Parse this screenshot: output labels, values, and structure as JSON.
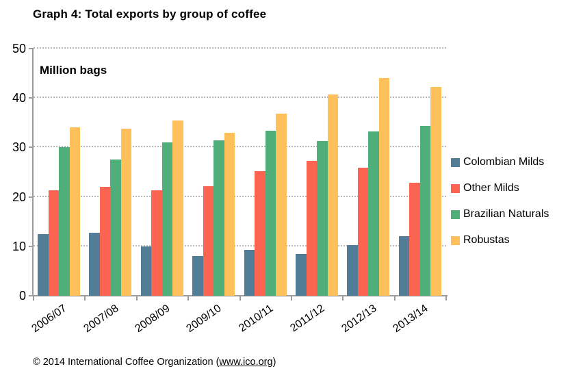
{
  "title": "Graph 4: Total exports by group of coffee",
  "footer": {
    "prefix": "© 2014 International Coffee Organization (",
    "link": "www.ico.org",
    "suffix": ")"
  },
  "chart_data": {
    "type": "bar",
    "title": "Graph 4: Total exports by group of coffee",
    "value_axis_label": "Million bags",
    "unit": "million bags",
    "categories": [
      "2006/07",
      "2007/08",
      "2008/09",
      "2009/10",
      "2010/11",
      "2011/12",
      "2012/13",
      "2013/14"
    ],
    "series": [
      {
        "name": "Colombian Milds",
        "color": "#527D96",
        "values": [
          12.5,
          12.7,
          10.0,
          8.1,
          9.3,
          8.4,
          10.2,
          12.1
        ]
      },
      {
        "name": "Other Milds",
        "color": "#FA6450",
        "values": [
          21.3,
          22.0,
          21.4,
          22.1,
          25.2,
          27.3,
          25.9,
          22.8
        ]
      },
      {
        "name": "Brazilian Naturals",
        "color": "#4FAE79",
        "values": [
          30.0,
          27.6,
          31.0,
          31.4,
          33.4,
          31.3,
          33.2,
          34.4
        ]
      },
      {
        "name": "Robustas",
        "color": "#FDC05A",
        "values": [
          34.1,
          33.8,
          35.4,
          32.9,
          36.8,
          40.7,
          44.0,
          42.3
        ]
      }
    ],
    "ylim": [
      0,
      50
    ],
    "yticks": [
      0,
      10,
      20,
      30,
      40,
      50
    ],
    "grid": "horizontal-dotted",
    "legend_position": "right",
    "xlabel_rotation_deg": -35
  }
}
